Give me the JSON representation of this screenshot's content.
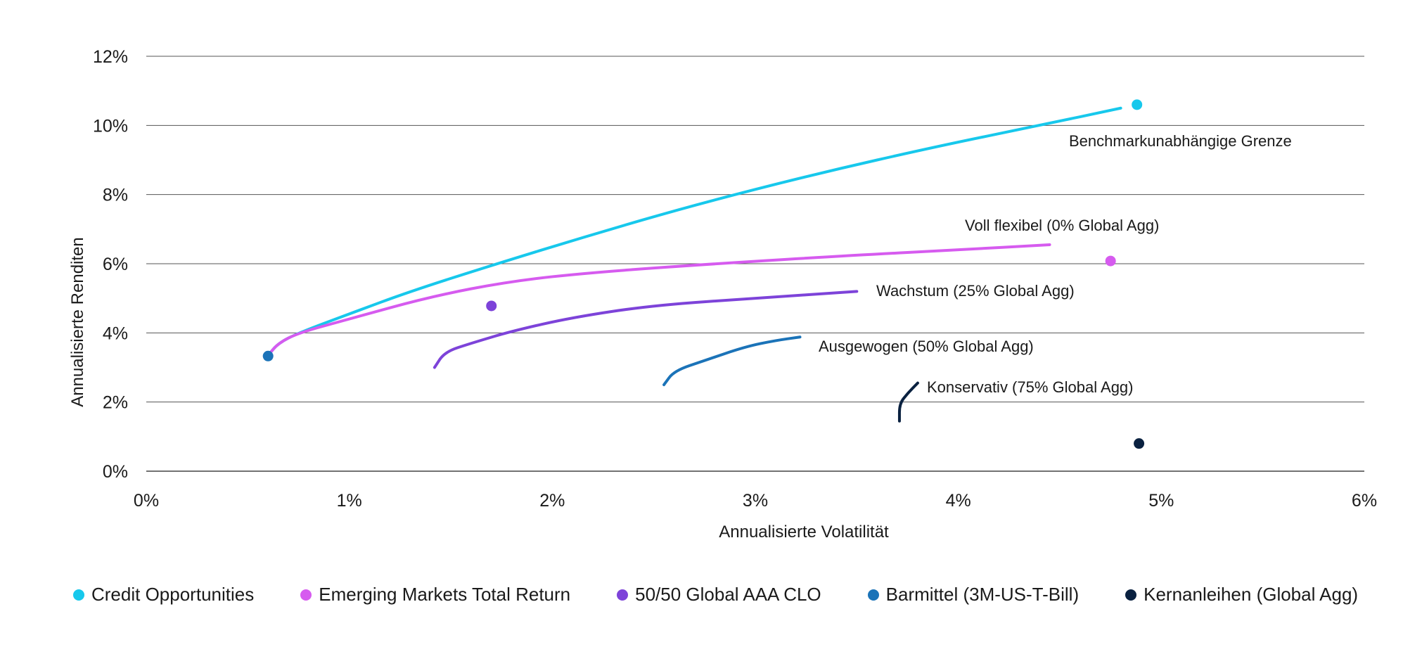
{
  "chart_data": {
    "type": "line",
    "xlabel": "Annualisierte Volatilität",
    "ylabel": "Annualisierte Renditen",
    "xlim": [
      0,
      6
    ],
    "ylim": [
      0,
      12
    ],
    "x_ticks": [
      "0%",
      "1%",
      "2%",
      "3%",
      "4%",
      "5%",
      "6%"
    ],
    "y_ticks": [
      "0%",
      "2%",
      "4%",
      "6%",
      "8%",
      "10%",
      "12%"
    ],
    "grid": "horizontal",
    "legend_position": "bottom",
    "frontiers": [
      {
        "label": "Benchmarkunabhängige Grenze",
        "color": "#17C8EC",
        "points": [
          [
            0.6,
            3.35
          ],
          [
            0.65,
            3.7
          ],
          [
            0.75,
            4.0
          ],
          [
            1.0,
            4.55
          ],
          [
            1.3,
            5.2
          ],
          [
            1.7,
            5.95
          ],
          [
            2.2,
            6.85
          ],
          [
            2.7,
            7.7
          ],
          [
            3.3,
            8.6
          ],
          [
            3.9,
            9.4
          ],
          [
            4.4,
            10.0
          ],
          [
            4.8,
            10.5
          ]
        ]
      },
      {
        "label": "Voll flexibel (0% Global Agg)",
        "color": "#D65BEF",
        "points": [
          [
            0.6,
            3.35
          ],
          [
            0.65,
            3.7
          ],
          [
            0.75,
            4.0
          ],
          [
            1.0,
            4.4
          ],
          [
            1.4,
            5.05
          ],
          [
            1.8,
            5.5
          ],
          [
            2.2,
            5.75
          ],
          [
            2.8,
            6.0
          ],
          [
            3.5,
            6.25
          ],
          [
            4.0,
            6.4
          ],
          [
            4.45,
            6.55
          ]
        ]
      },
      {
        "label": "Wachstum (25% Global Agg)",
        "color": "#7D43D9",
        "points": [
          [
            1.42,
            3.0
          ],
          [
            1.47,
            3.45
          ],
          [
            1.6,
            3.7
          ],
          [
            1.8,
            4.05
          ],
          [
            2.1,
            4.45
          ],
          [
            2.5,
            4.8
          ],
          [
            3.0,
            5.0
          ],
          [
            3.5,
            5.2
          ]
        ]
      },
      {
        "label": "Ausgewogen (50% Global Agg)",
        "color": "#1B73B8",
        "points": [
          [
            2.55,
            2.5
          ],
          [
            2.6,
            2.9
          ],
          [
            2.75,
            3.2
          ],
          [
            2.95,
            3.6
          ],
          [
            3.1,
            3.78
          ],
          [
            3.22,
            3.88
          ]
        ]
      },
      {
        "label": "Konservativ (75% Global Agg)",
        "color": "#0A2140",
        "points": [
          [
            3.71,
            1.45
          ],
          [
            3.71,
            1.95
          ],
          [
            3.75,
            2.25
          ],
          [
            3.8,
            2.55
          ]
        ]
      }
    ],
    "points": [
      {
        "name": "Credit Opportunities",
        "x": 4.88,
        "y": 10.6,
        "color": "#17C8EC"
      },
      {
        "name": "Emerging Markets Total Return",
        "x": 4.75,
        "y": 6.08,
        "color": "#D65BEF"
      },
      {
        "name": "50/50 Global AAA CLO",
        "x": 1.7,
        "y": 4.78,
        "color": "#7D43D9"
      },
      {
        "name": "Barmittel (3M-US-T-Bill)",
        "x": 0.6,
        "y": 3.33,
        "color": "#1B73B8"
      },
      {
        "name": "Kernanleihen (Global Agg)",
        "x": 4.89,
        "y": 0.8,
        "color": "#0A2140"
      }
    ],
    "legend": [
      {
        "label": "Credit Opportunities",
        "color": "#17C8EC"
      },
      {
        "label": "Emerging Markets Total Return",
        "color": "#D65BEF"
      },
      {
        "label": "50/50 Global AAA CLO",
        "color": "#7D43D9"
      },
      {
        "label": "Barmittel (3M-US-T-Bill)",
        "color": "#1B73B8"
      },
      {
        "label": "Kernanleihen (Global Agg)",
        "color": "#0A2140"
      }
    ]
  }
}
